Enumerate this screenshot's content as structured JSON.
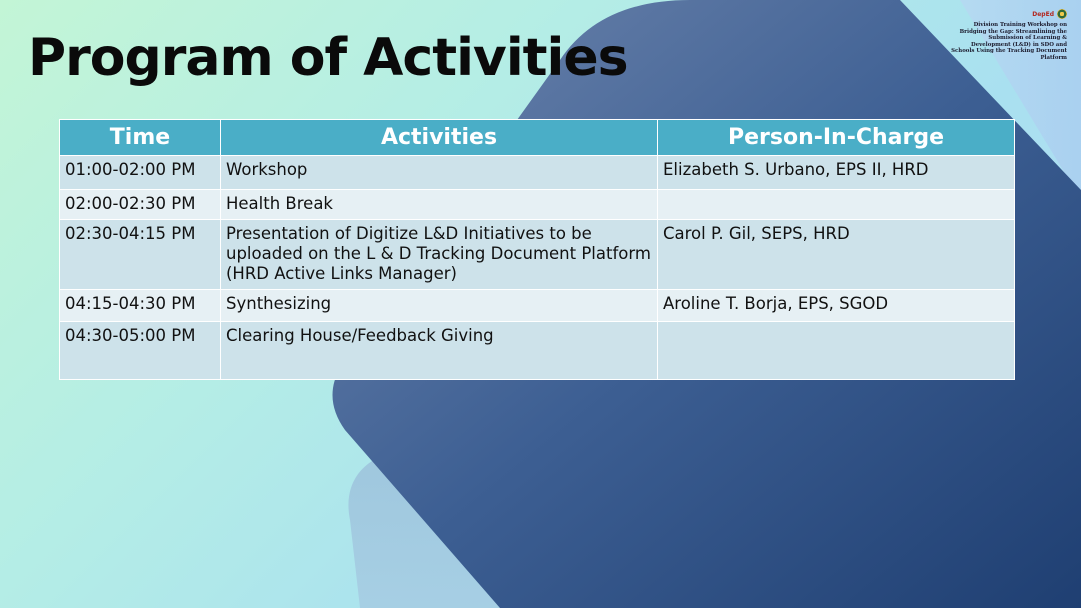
{
  "title": "Program of Activities",
  "corner": {
    "logo_text": "DepEd",
    "caption": "Division Training Workshop on Bridging the Gap: Streamlining the Submission of Learning & Development (L&D) in SDO and Schools Using the Tracking Document Platform"
  },
  "table": {
    "headers": {
      "time": "Time",
      "activities": "Activities",
      "person": "Person-In-Charge"
    },
    "rows": [
      {
        "time": "01:00-02:00 PM",
        "activity": "Workshop",
        "person": "Elizabeth S. Urbano, EPS II, HRD"
      },
      {
        "time": "02:00-02:30 PM",
        "activity": "Health Break",
        "person": ""
      },
      {
        "time": "02:30-04:15 PM",
        "activity": "Presentation of Digitize L&D Initiatives to be uploaded on the L & D Tracking Document Platform (HRD Active Links Manager)",
        "person": "Carol P. Gil, SEPS, HRD"
      },
      {
        "time": "04:15-04:30 PM",
        "activity": "Synthesizing",
        "person": "Aroline T. Borja, EPS, SGOD"
      },
      {
        "time": "04:30-05:00 PM",
        "activity": "Clearing House/Feedback Giving",
        "person": ""
      }
    ]
  },
  "colors": {
    "header_bg": "#4aaec7",
    "row_dark": "#cde2ea",
    "row_light": "#e6f0f4",
    "shape_dark": "#2b4f84"
  }
}
